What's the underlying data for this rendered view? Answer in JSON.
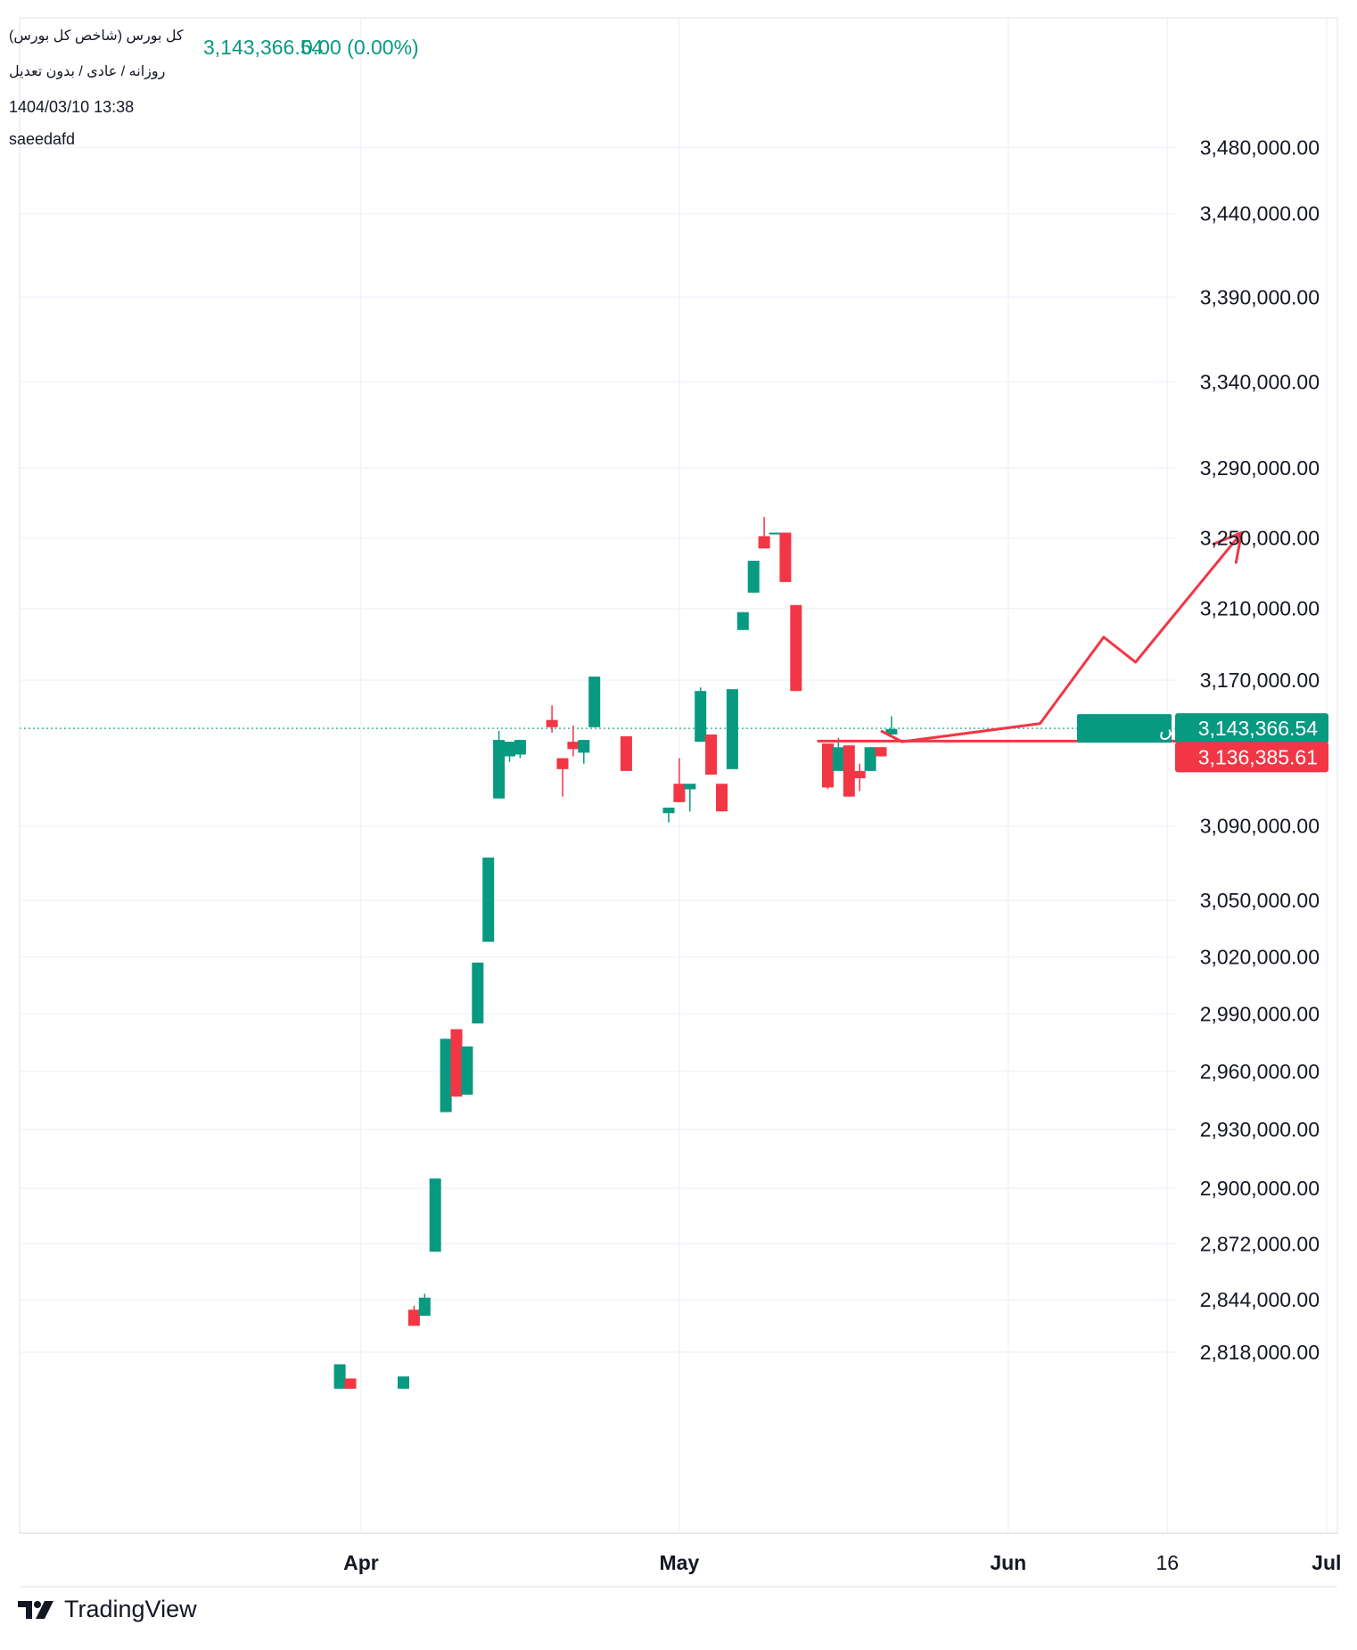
{
  "header": {
    "symbol_title": "کل بورس (شاخص کل بورس)",
    "timeframe": "روزانه / عادی / بدون تعدیل",
    "last_price": "3,143,366.54",
    "change": "0.00 (0.00%)",
    "datetime": "1404/03/10 13:38",
    "author": "saeedafd"
  },
  "brand": {
    "name": "TradingView"
  },
  "colors": {
    "up": "#089981",
    "down": "#f23645",
    "drawing": "#f23645",
    "grid": "#f0f3fa"
  },
  "chart_data": {
    "type": "candlestick",
    "y_axis": {
      "scale": "log",
      "range": [
        2800000,
        3540000
      ],
      "position": "right",
      "ticks": [
        "3,480,000.00",
        "3,440,000.00",
        "3,390,000.00",
        "3,340,000.00",
        "3,290,000.00",
        "3,250,000.00",
        "3,210,000.00",
        "3,170,000.00",
        "3,090,000.00",
        "3,050,000.00",
        "3,020,000.00",
        "2,990,000.00",
        "2,960,000.00",
        "2,930,000.00",
        "2,900,000.00",
        "2,872,000.00",
        "2,844,000.00",
        "2,818,000.00"
      ]
    },
    "x_axis": {
      "ticks": [
        {
          "label": "Apr",
          "bold": true,
          "date": "2025-04-01"
        },
        {
          "label": "May",
          "bold": true,
          "date": "2025-05-01"
        },
        {
          "label": "Jun",
          "bold": true,
          "date": "2025-06-01"
        },
        {
          "label": "16",
          "bold": false,
          "date": "2025-06-16"
        },
        {
          "label": "Jul",
          "bold": true,
          "date": "2025-07-01"
        }
      ]
    },
    "grid": true,
    "series_label": "کل بورس",
    "last_price_label": "3,143,366.54",
    "last_price_value": 3143366.54,
    "level_label": "3,136,385.61",
    "level_value": 3136385.61,
    "candles": [
      {
        "date": "2025-03-30",
        "o": 2800000,
        "h": 2812000,
        "l": 2800000,
        "c": 2812000
      },
      {
        "date": "2025-03-31",
        "o": 2805000,
        "h": 2805000,
        "l": 2800000,
        "c": 2800000
      },
      {
        "date": "2025-04-05",
        "o": 2800000,
        "h": 2806000,
        "l": 2800000,
        "c": 2806000
      },
      {
        "date": "2025-04-06",
        "o": 2839000,
        "h": 2841000,
        "l": 2831000,
        "c": 2831000
      },
      {
        "date": "2025-04-07",
        "o": 2836000,
        "h": 2847000,
        "l": 2836000,
        "c": 2845000
      },
      {
        "date": "2025-04-08",
        "o": 2868000,
        "h": 2905000,
        "l": 2868000,
        "c": 2905000
      },
      {
        "date": "2025-04-09",
        "o": 2939000,
        "h": 2977000,
        "l": 2939000,
        "c": 2977000
      },
      {
        "date": "2025-04-10",
        "o": 2982000,
        "h": 2982000,
        "l": 2947000,
        "c": 2947000
      },
      {
        "date": "2025-04-11",
        "o": 2948000,
        "h": 2973000,
        "l": 2948000,
        "c": 2973000
      },
      {
        "date": "2025-04-12",
        "o": 2985000,
        "h": 3017000,
        "l": 2985000,
        "c": 3017000
      },
      {
        "date": "2025-04-13",
        "o": 3028000,
        "h": 3073000,
        "l": 3028000,
        "c": 3073000
      },
      {
        "date": "2025-04-14",
        "o": 3105000,
        "h": 3142000,
        "l": 3105000,
        "c": 3137000
      },
      {
        "date": "2025-04-15",
        "o": 3128000,
        "h": 3136000,
        "l": 3125000,
        "c": 3136000
      },
      {
        "date": "2025-04-16",
        "o": 3129000,
        "h": 3137000,
        "l": 3127000,
        "c": 3137000
      },
      {
        "date": "2025-04-19",
        "o": 3148000,
        "h": 3156000,
        "l": 3141000,
        "c": 3144000
      },
      {
        "date": "2025-04-20",
        "o": 3127000,
        "h": 3127000,
        "l": 3106000,
        "c": 3121000
      },
      {
        "date": "2025-04-21",
        "o": 3136000,
        "h": 3145000,
        "l": 3128000,
        "c": 3132000
      },
      {
        "date": "2025-04-22",
        "o": 3130000,
        "h": 3137000,
        "l": 3124000,
        "c": 3137000
      },
      {
        "date": "2025-04-23",
        "o": 3144000,
        "h": 3172000,
        "l": 3144000,
        "c": 3172000
      },
      {
        "date": "2025-04-26",
        "o": 3139000,
        "h": 3139000,
        "l": 3120000,
        "c": 3120000
      },
      {
        "date": "2025-04-30",
        "o": 3097000,
        "h": 3100000,
        "l": 3092000,
        "c": 3100000
      },
      {
        "date": "2025-05-01",
        "o": 3113000,
        "h": 3127000,
        "l": 3103000,
        "c": 3103000
      },
      {
        "date": "2025-05-02",
        "o": 3110000,
        "h": 3112000,
        "l": 3098000,
        "c": 3113000
      },
      {
        "date": "2025-05-03",
        "o": 3136000,
        "h": 3166000,
        "l": 3136000,
        "c": 3164000
      },
      {
        "date": "2025-05-04",
        "o": 3140000,
        "h": 3140000,
        "l": 3118000,
        "c": 3118000
      },
      {
        "date": "2025-05-05",
        "o": 3113000,
        "h": 3113000,
        "l": 3098000,
        "c": 3098000
      },
      {
        "date": "2025-05-06",
        "o": 3121000,
        "h": 3165000,
        "l": 3121000,
        "c": 3165000
      },
      {
        "date": "2025-05-07",
        "o": 3198000,
        "h": 3208000,
        "l": 3198000,
        "c": 3208000
      },
      {
        "date": "2025-05-08",
        "o": 3219000,
        "h": 3237000,
        "l": 3219000,
        "c": 3237000
      },
      {
        "date": "2025-05-09",
        "o": 3251000,
        "h": 3262000,
        "l": 3244000,
        "c": 3244000
      },
      {
        "date": "2025-05-10",
        "o": 3252000,
        "h": 3253000,
        "l": 3252000,
        "c": 3253000
      },
      {
        "date": "2025-05-11",
        "o": 3253000,
        "h": 3253000,
        "l": 3225000,
        "c": 3225000
      },
      {
        "date": "2025-05-12",
        "o": 3212000,
        "h": 3212000,
        "l": 3164000,
        "c": 3164000
      },
      {
        "date": "2025-05-15",
        "o": 3135000,
        "h": 3135000,
        "l": 3110000,
        "c": 3111000
      },
      {
        "date": "2025-05-16",
        "o": 3120000,
        "h": 3138000,
        "l": 3120000,
        "c": 3133000
      },
      {
        "date": "2025-05-17",
        "o": 3134000,
        "h": 3134000,
        "l": 3106000,
        "c": 3106000
      },
      {
        "date": "2025-05-18",
        "o": 3120000,
        "h": 3124000,
        "l": 3109000,
        "c": 3116000
      },
      {
        "date": "2025-05-19",
        "o": 3120000,
        "h": 3133000,
        "l": 3120000,
        "c": 3133000
      },
      {
        "date": "2025-05-20",
        "o": 3133000,
        "h": 3133000,
        "l": 3128000,
        "c": 3128000
      },
      {
        "date": "2025-05-21",
        "o": 3140000,
        "h": 3150000,
        "l": 3140000,
        "c": 3143000
      }
    ],
    "drawings": {
      "horizontal_level": {
        "start_date": "2025-05-14",
        "value": 3136385.61
      },
      "projection_path": [
        {
          "date": "2025-05-20",
          "value": 3142000
        },
        {
          "date": "2025-05-22",
          "value": 3136000
        },
        {
          "date": "2025-06-04",
          "value": 3146000
        },
        {
          "date": "2025-06-10",
          "value": 3194000
        },
        {
          "date": "2025-06-13",
          "value": 3180000
        },
        {
          "date": "2025-06-23",
          "value": 3253000
        }
      ]
    }
  }
}
